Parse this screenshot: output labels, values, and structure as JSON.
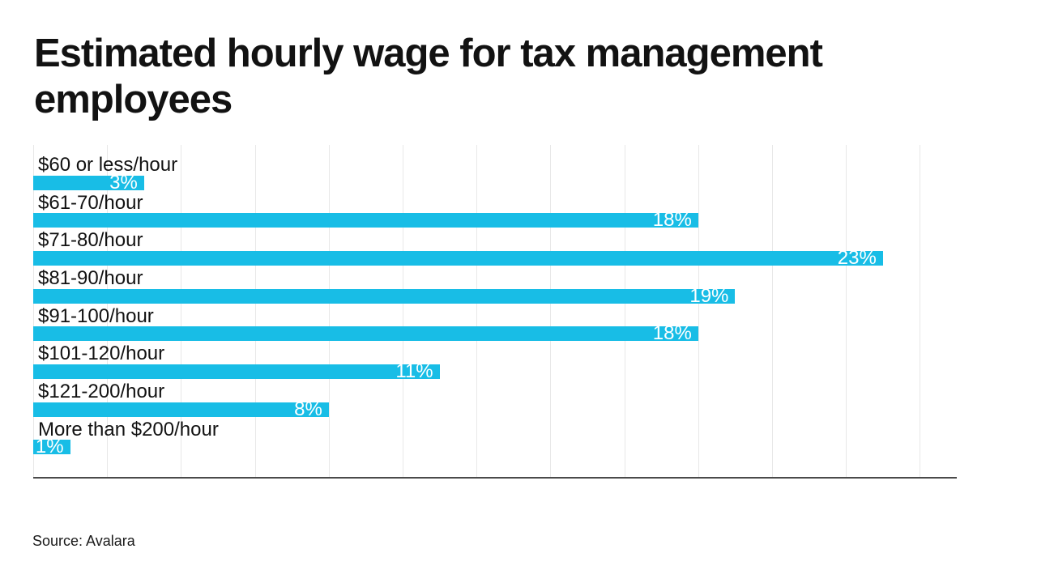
{
  "header": {
    "title": "Estimated hourly wage for tax management employees"
  },
  "footer": {
    "source": "Source: Avalara"
  },
  "colors": {
    "bar": "#18BDE6",
    "grid": "#E8E8E8",
    "axis": "#4A4A4A",
    "title_text": "#121212",
    "category_text": "#121212",
    "value_text": "#FFFFFF"
  },
  "chart_data": {
    "type": "bar",
    "orientation": "horizontal",
    "title": "Estimated hourly wage for tax management employees",
    "categories": [
      "$60 or less/hour",
      "$61-70/hour",
      "$71-80/hour",
      "$81-90/hour",
      "$91-100/hour",
      "$101-120/hour",
      "$121-200/hour",
      "More than $200/hour"
    ],
    "values": [
      3,
      18,
      23,
      19,
      18,
      11,
      8,
      1
    ],
    "value_labels": [
      "3%",
      "18%",
      "23%",
      "19%",
      "18%",
      "11%",
      "8%",
      "1%"
    ],
    "xlabel": "",
    "ylabel": "",
    "xlim": [
      0,
      25
    ],
    "grid_step": 2,
    "grid": true,
    "legend": false,
    "axis_tick_labels_shown": false,
    "source": "Source: Avalara"
  }
}
